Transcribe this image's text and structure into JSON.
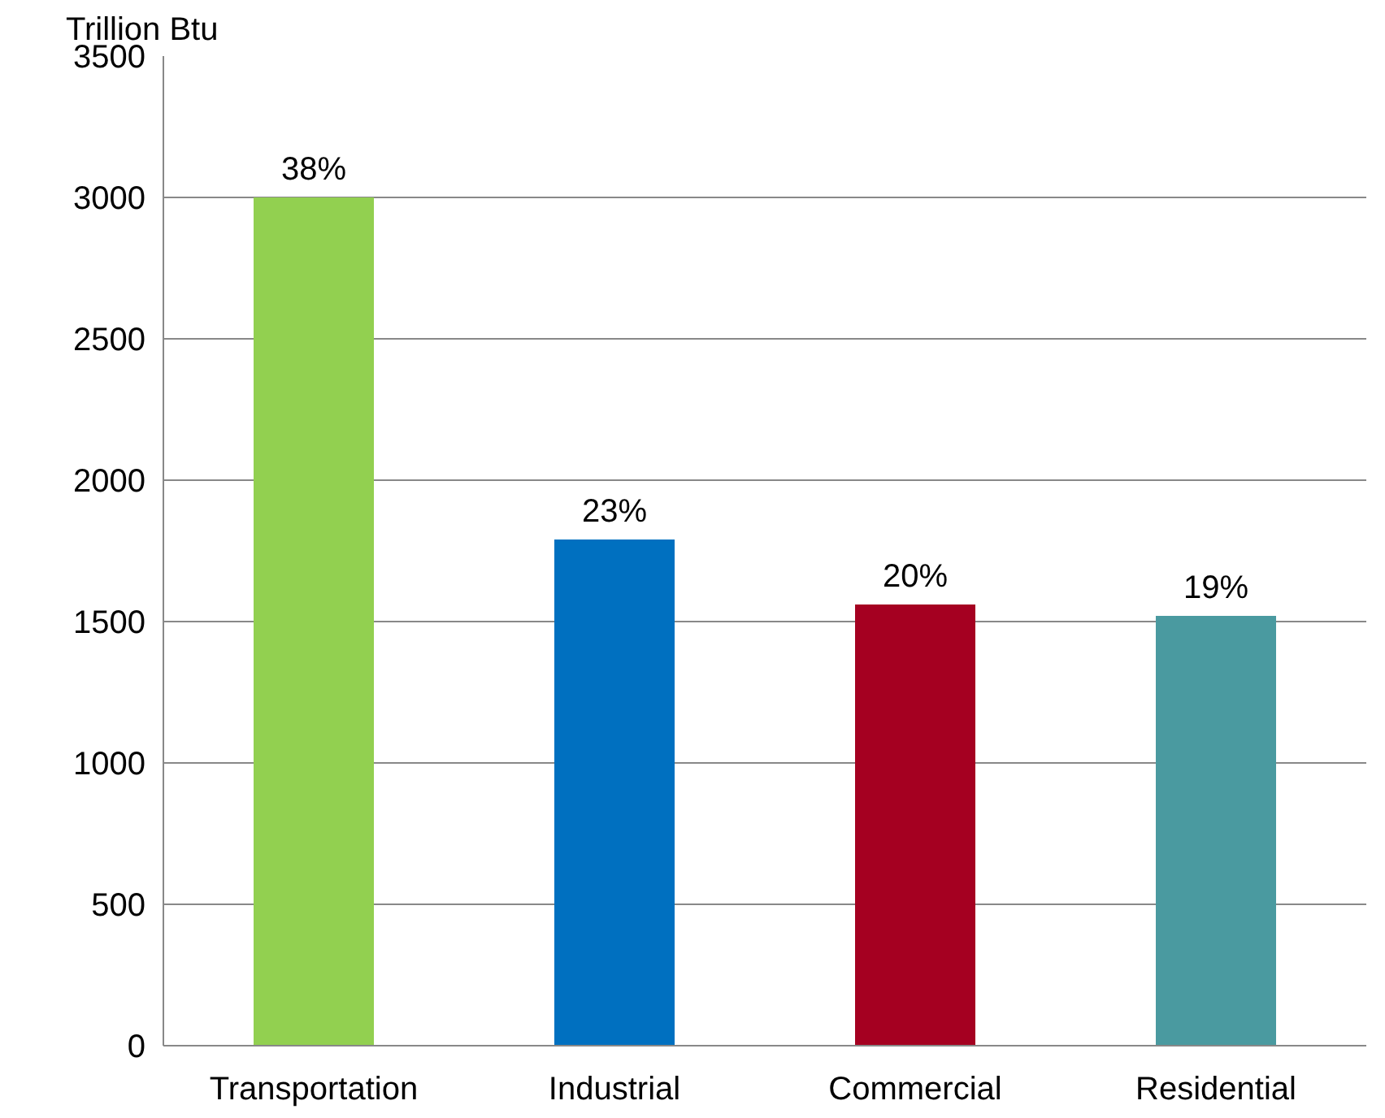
{
  "chart_data": {
    "type": "bar",
    "ylabel": "Trillion Btu",
    "categories": [
      "Transportation",
      "Industrial",
      "Commercial",
      "Residential"
    ],
    "values": [
      3000,
      1790,
      1560,
      1520
    ],
    "colors": [
      "#92d050",
      "#0070c0",
      "#a50021",
      "#4a9aa0"
    ],
    "annotations": [
      {
        "text": "38%",
        "x": "Transportation",
        "y": 3000
      },
      {
        "text": "23%",
        "x": "Industrial",
        "y": 1790
      },
      {
        "text": "20%",
        "x": "Commercial",
        "y": 1560
      },
      {
        "text": "19%",
        "x": "Residential",
        "y": 1520
      }
    ],
    "ylim": [
      0,
      3500
    ],
    "yticks": [
      0,
      500,
      1000,
      1500,
      2000,
      2500,
      3000,
      3500
    ],
    "grid": "y"
  }
}
